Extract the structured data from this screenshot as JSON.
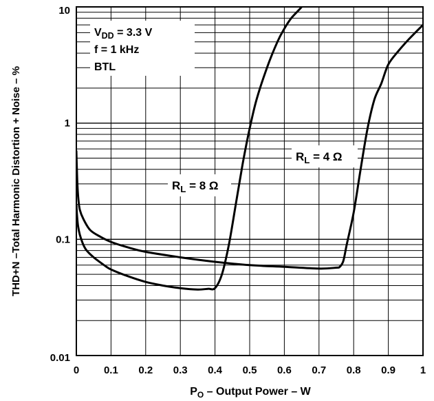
{
  "chart_data": {
    "type": "line",
    "x_scale": "linear",
    "y_scale": "log",
    "xlabel": {
      "main": "P",
      "sub": "O",
      "rest": " – Output Power – W"
    },
    "ylabel": "THD+N –Total Harmonic Distortion + Noise – %",
    "xlim": [
      0,
      1
    ],
    "ylim": [
      0.01,
      10
    ],
    "x_ticks": [
      0,
      0.1,
      0.2,
      0.3,
      0.4,
      0.5,
      0.6,
      0.7,
      0.8,
      0.9,
      1
    ],
    "x_tick_labels": [
      "0",
      "0.1",
      "0.2",
      "0.3",
      "0.4",
      "0.5",
      "0.6",
      "0.7",
      "0.8",
      "0.9",
      "1"
    ],
    "y_ticks": [
      0.01,
      0.1,
      1,
      10
    ],
    "y_tick_labels": [
      "0.01",
      "0.1",
      "1",
      "10"
    ],
    "grid": true,
    "legend_box": {
      "lines": [
        {
          "main": "V",
          "sub": "DD",
          "rest": " = 3.3 V"
        },
        {
          "main": "f = 1 kHz",
          "sub": "",
          "rest": ""
        },
        {
          "main": "BTL",
          "sub": "",
          "rest": ""
        }
      ]
    },
    "series": [
      {
        "label_main": "R",
        "label_sub": "L",
        "label_rest": " = 8 Ω",
        "x": [
          0.0,
          0.002,
          0.005,
          0.01,
          0.02,
          0.03,
          0.05,
          0.08,
          0.1,
          0.15,
          0.2,
          0.25,
          0.3,
          0.35,
          0.38,
          0.4,
          0.42,
          0.44,
          0.46,
          0.48,
          0.5,
          0.52,
          0.55,
          0.58,
          0.6,
          0.62,
          0.65,
          0.67
        ],
        "y": [
          0.2,
          0.16,
          0.13,
          0.11,
          0.09,
          0.08,
          0.07,
          0.06,
          0.055,
          0.048,
          0.043,
          0.04,
          0.038,
          0.037,
          0.0375,
          0.038,
          0.05,
          0.09,
          0.2,
          0.45,
          0.9,
          1.6,
          3.0,
          5.0,
          6.5,
          8.0,
          10.0,
          12.0
        ]
      },
      {
        "label_main": "R",
        "label_sub": "L",
        "label_rest": " = 4 Ω",
        "x": [
          0.0,
          0.001,
          0.003,
          0.006,
          0.01,
          0.02,
          0.04,
          0.07,
          0.1,
          0.15,
          0.2,
          0.3,
          0.4,
          0.5,
          0.6,
          0.7,
          0.75,
          0.76,
          0.77,
          0.78,
          0.8,
          0.82,
          0.84,
          0.86,
          0.88,
          0.9,
          0.93,
          0.96,
          1.0
        ],
        "y": [
          0.58,
          0.45,
          0.3,
          0.22,
          0.18,
          0.15,
          0.12,
          0.105,
          0.095,
          0.085,
          0.078,
          0.07,
          0.064,
          0.06,
          0.058,
          0.056,
          0.057,
          0.058,
          0.065,
          0.09,
          0.17,
          0.4,
          0.9,
          1.6,
          2.2,
          3.2,
          4.2,
          5.3,
          7.0
        ]
      }
    ]
  }
}
